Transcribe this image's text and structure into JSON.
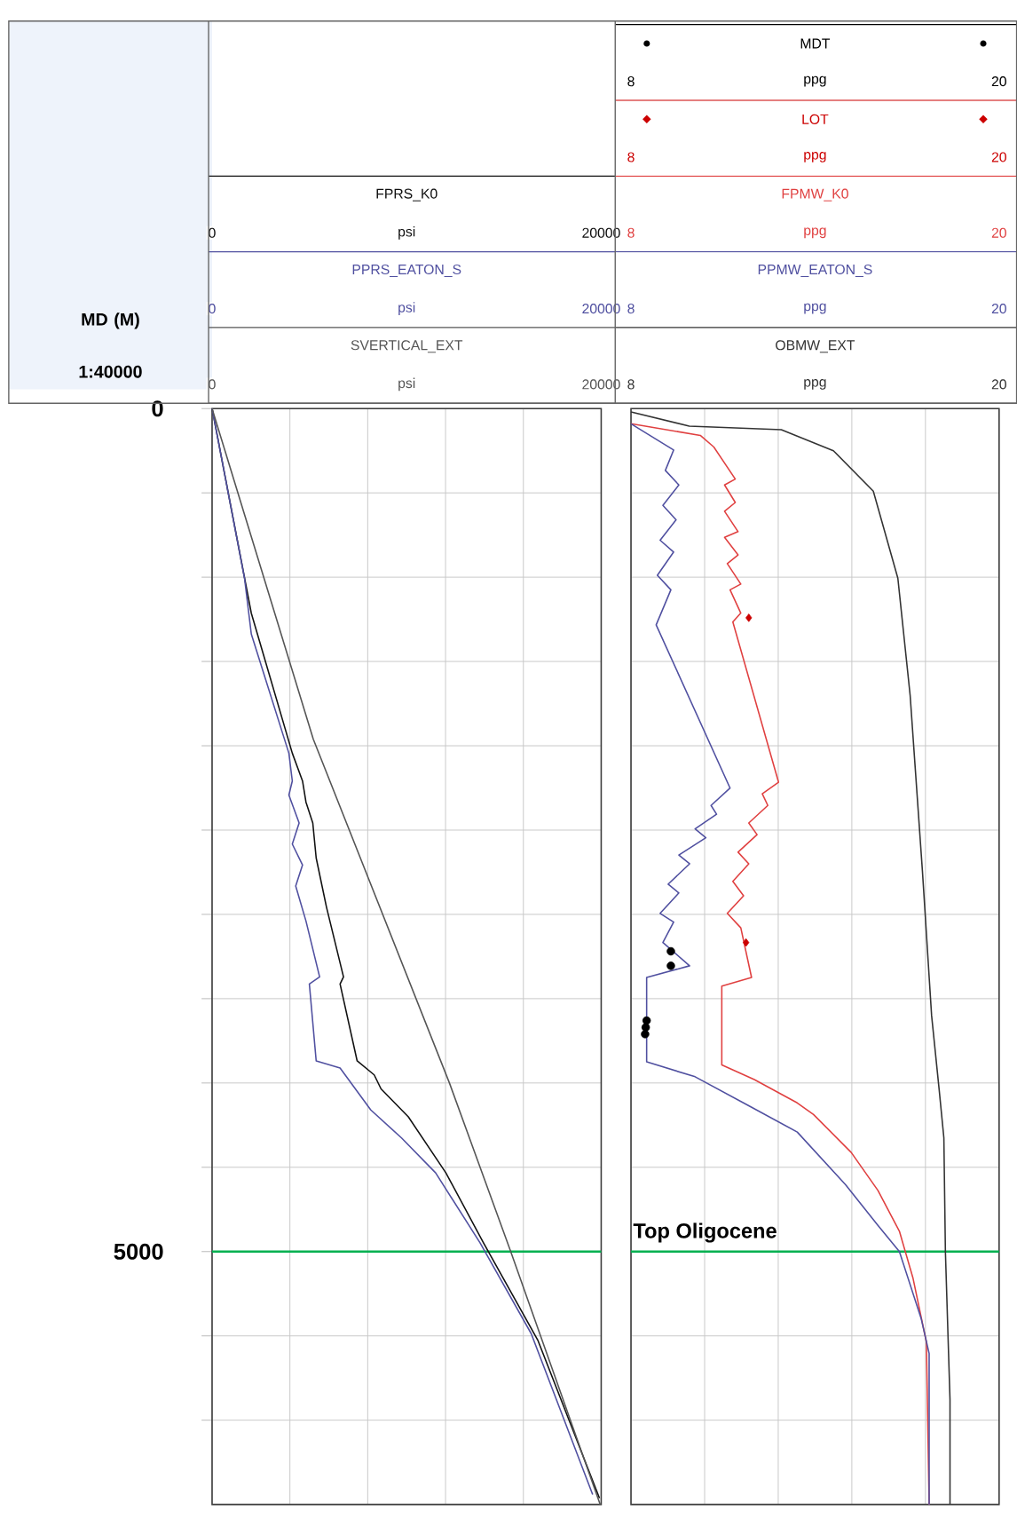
{
  "chart_data": [
    {
      "type": "line",
      "ylabel": "MD (M)",
      "xlabel": "psi",
      "annotations": [
        "1:40000",
        "0",
        "20000",
        "0",
        "20000"
      ],
      "legend": "top",
      "grid": true,
      "xlim": [
        0,
        20000
      ],
      "xticks": [
        0,
        {
          "value": 4000,
          "label": null
        },
        {
          "value": 8000,
          "label": null
        },
        {
          "value": 12000,
          "label": null
        },
        {
          "value": 16000,
          "label": null
        },
        20000
      ],
      "ylim": [
        6500,
        0
      ],
      "yticks": [
        0,
        {
          "value": 500,
          "label": null
        },
        {
          "value": 1000,
          "label": null
        },
        {
          "value": 1500,
          "label": null
        },
        {
          "value": 2000,
          "label": null
        },
        {
          "value": 2500,
          "label": null
        },
        {
          "value": 3000,
          "label": null
        },
        {
          "value": 3500,
          "label": null
        },
        {
          "value": 4000,
          "label": null
        },
        {
          "value": 4500,
          "label": null
        },
        5000,
        {
          "value": 5500,
          "label": null
        },
        {
          "value": 6000,
          "label": null
        }
      ],
      "ref_lines": [
        {
          "axis": "y",
          "value": 5000,
          "color": "#00b050"
        }
      ],
      "series": [
        {
          "name": "FPRS_K0",
          "color": "#111111",
          "x": [
            0,
            2017,
            4123,
            4649,
            4825,
            5176,
            5351,
            5878,
            6755,
            6579,
            7456,
            8333,
            8684,
            10088,
            12018,
            13948,
            16755,
            19912
          ],
          "values": [
            0,
            1214,
            2044,
            2209,
            2334,
            2458,
            2666,
            2956,
            3371,
            3413,
            3869,
            3952,
            4035,
            4201,
            4533,
            4948,
            5529,
            6462
          ]
        },
        {
          "name": "PPRS_EATON_S",
          "color": "#5050a0",
          "x": [
            0,
            1667,
            2017,
            3947,
            4123,
            3947,
            4474,
            4123,
            4649,
            4298,
            4825,
            5527,
            5000,
            5351,
            6579,
            8158,
            9737,
            11491,
            13772,
            16404,
            19562
          ],
          "values": [
            0,
            1006,
            1338,
            2044,
            2209,
            2292,
            2458,
            2583,
            2707,
            2832,
            3039,
            3371,
            3413,
            3869,
            3911,
            4160,
            4326,
            4533,
            4948,
            5487,
            6441
          ]
        },
        {
          "name": "SVERTICAL_EXT",
          "color": "#555555",
          "x": [
            0,
            5200,
            12200,
            15350,
            19950
          ],
          "values": [
            0,
            1960,
            4000,
            5000,
            6500
          ]
        }
      ]
    },
    {
      "type": "line",
      "xlabel": "ppg",
      "legend": "top",
      "annotations": [
        "8",
        "20",
        "8",
        "20",
        "8",
        "20",
        "8",
        "20"
      ],
      "grid": true,
      "tick_labels": "x",
      "xlim": [
        8,
        20
      ],
      "xticks": [
        8,
        {
          "value": 10.4,
          "label": null
        },
        {
          "value": 12.8,
          "label": null
        },
        {
          "value": 15.2,
          "label": null
        },
        {
          "value": 17.6,
          "label": null
        },
        20
      ],
      "ylim": [
        6500,
        0
      ],
      "yticks": [
        0,
        500,
        1000,
        1500,
        2000,
        2500,
        3000,
        3500,
        4000,
        4500,
        5000,
        5500,
        6000
      ],
      "ref_lines": [
        {
          "axis": "y",
          "value": 5000,
          "label": "Top Oligocene",
          "color": "#00b050"
        }
      ],
      "series": [
        {
          "name": "MDT",
          "type": "scatter",
          "marker": "circle",
          "color": "#000000",
          "x": [
            9.3,
            9.3,
            8.51,
            8.48,
            8.46
          ],
          "values": [
            3219,
            3305,
            3630,
            3670,
            3710
          ]
        },
        {
          "name": "LOT",
          "type": "scatter",
          "marker": "diamond",
          "color": "#cc0000",
          "x": [
            11.84,
            11.75
          ],
          "values": [
            1241,
            3167
          ]
        },
        {
          "name": "FPMW_K0",
          "color": "#e04040",
          "x": [
            8.0,
            10.26,
            10.7,
            11.4,
            11.05,
            11.4,
            11.05,
            11.49,
            11.05,
            11.49,
            11.14,
            11.58,
            11.23,
            11.58,
            11.32,
            12.81,
            12.28,
            12.46,
            11.84,
            12.11,
            11.49,
            11.84,
            11.32,
            11.67,
            11.14,
            11.58,
            11.93,
            10.96,
            10.96,
            12.02,
            13.42,
            13.95,
            15.18,
            16.05,
            16.75,
            17.19,
            17.63,
            17.72
          ],
          "values": [
            90,
            159,
            228,
            418,
            453,
            557,
            609,
            730,
            764,
            868,
            920,
            1041,
            1075,
            1213,
            1265,
            2216,
            2285,
            2354,
            2458,
            2527,
            2631,
            2700,
            2804,
            2890,
            2994,
            3080,
            3374,
            3426,
            3893,
            3980,
            4118,
            4187,
            4412,
            4637,
            4879,
            5155,
            5536,
            6500
          ]
        },
        {
          "name": "PPMW_EATON_S",
          "color": "#5050a0",
          "x": [
            8.0,
            9.39,
            9.12,
            9.56,
            9.04,
            9.47,
            8.95,
            9.39,
            8.86,
            9.3,
            8.82,
            11.23,
            10.61,
            10.79,
            10.09,
            10.44,
            9.56,
            9.91,
            9.21,
            9.56,
            8.95,
            9.39,
            9.04,
            9.91,
            8.51,
            8.51,
            10.09,
            11.84,
            13.42,
            14.99,
            16.05,
            16.75,
            17.46,
            17.72,
            17.72
          ],
          "values": [
            90,
            246,
            367,
            453,
            574,
            660,
            781,
            851,
            989,
            1075,
            1283,
            2251,
            2354,
            2406,
            2493,
            2545,
            2648,
            2700,
            2821,
            2873,
            2994,
            3046,
            3167,
            3305,
            3374,
            3875,
            3963,
            4135,
            4291,
            4602,
            4844,
            5000,
            5397,
            5605,
            6500
          ]
        },
        {
          "name": "OBMW_EXT",
          "color": "#333333",
          "x": [
            8,
            9.9,
            12.9,
            14.6,
            15.9,
            16.7,
            17.1,
            17.5,
            17.8,
            18.05,
            18.2,
            18.25,
            18.4,
            18.4
          ],
          "values": [
            20,
            104,
            125,
            250,
            490,
            1006,
            1700,
            2740,
            3600,
            4046,
            4326,
            5000,
            5880,
            6500
          ]
        }
      ]
    }
  ]
}
